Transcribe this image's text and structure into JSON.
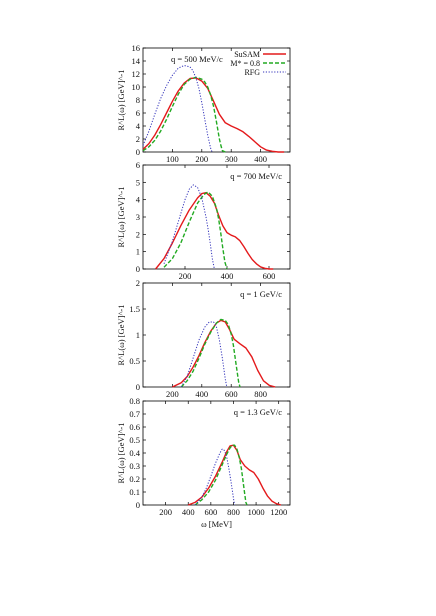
{
  "chart_data": [
    {
      "type": "line",
      "annotation": "q = 500 MeV/c",
      "ylabel": "R^L(ω) [GeV]^-1",
      "xlabel": "",
      "xlim": [
        0,
        500
      ],
      "ylim": [
        0,
        16
      ],
      "xticks": [
        100,
        200,
        300,
        400
      ],
      "yticks": [
        0,
        2,
        4,
        6,
        8,
        10,
        12,
        14,
        16
      ],
      "legend": {
        "placement": "top-right",
        "entries": [
          "SuSAM",
          "M* = 0.8",
          "RFG"
        ]
      },
      "series": [
        {
          "name": "SuSAM",
          "color": "#e41a1c",
          "style": "solid",
          "x": [
            0,
            20,
            40,
            60,
            80,
            100,
            120,
            140,
            160,
            180,
            200,
            220,
            240,
            260,
            280,
            300,
            320,
            340,
            360,
            380,
            400,
            420,
            440,
            460,
            480
          ],
          "y": [
            0.4,
            1.3,
            2.6,
            4.2,
            6.0,
            7.8,
            9.4,
            10.6,
            11.3,
            11.4,
            10.9,
            9.8,
            7.8,
            5.8,
            4.5,
            4.0,
            3.6,
            3.1,
            2.4,
            1.6,
            0.8,
            0.3,
            0.1,
            0.0,
            0.0
          ]
        },
        {
          "name": "M* = 0.8",
          "color": "#22aa22",
          "style": "dashed",
          "x": [
            0,
            20,
            40,
            60,
            80,
            100,
            120,
            140,
            160,
            180,
            200,
            210,
            220,
            230,
            240,
            250,
            260,
            265,
            270,
            280
          ],
          "y": [
            0.2,
            0.8,
            1.8,
            3.2,
            5.0,
            7.0,
            8.9,
            10.4,
            11.2,
            11.5,
            11.2,
            10.8,
            10.0,
            8.8,
            7.0,
            4.6,
            2.0,
            1.0,
            0.2,
            0.0
          ]
        },
        {
          "name": "RFG",
          "color": "#3333bb",
          "style": "dotted",
          "x": [
            0,
            20,
            40,
            60,
            80,
            100,
            120,
            140,
            160,
            170,
            180,
            190,
            200,
            210,
            220,
            230,
            235
          ],
          "y": [
            1.0,
            3.2,
            5.8,
            8.2,
            10.2,
            11.8,
            12.9,
            13.3,
            13.1,
            12.5,
            11.4,
            9.8,
            7.6,
            5.1,
            2.6,
            0.6,
            0.0
          ]
        }
      ]
    },
    {
      "type": "line",
      "annotation": "q = 700 MeV/c",
      "ylabel": "R^L(ω) [GeV]^-1",
      "xlabel": "",
      "xlim": [
        0,
        700
      ],
      "ylim": [
        0,
        6
      ],
      "xticks": [
        200,
        400,
        600
      ],
      "yticks": [
        0,
        1,
        2,
        3,
        4,
        5,
        6
      ],
      "series": [
        {
          "name": "SuSAM",
          "color": "#e41a1c",
          "style": "solid",
          "x": [
            60,
            100,
            140,
            180,
            220,
            260,
            280,
            300,
            320,
            340,
            360,
            380,
            400,
            420,
            440,
            460,
            480,
            500,
            520,
            540,
            560,
            580,
            600,
            620
          ],
          "y": [
            0.0,
            0.6,
            1.5,
            2.5,
            3.4,
            4.1,
            4.35,
            4.4,
            4.2,
            3.8,
            3.1,
            2.5,
            2.1,
            1.95,
            1.85,
            1.65,
            1.3,
            0.9,
            0.55,
            0.3,
            0.12,
            0.04,
            0.0,
            0.0
          ]
        },
        {
          "name": "M* = 0.8",
          "color": "#22aa22",
          "style": "dashed",
          "x": [
            100,
            140,
            180,
            220,
            260,
            290,
            310,
            330,
            350,
            360,
            370,
            380,
            390,
            400
          ],
          "y": [
            0.1,
            0.6,
            1.5,
            2.7,
            3.8,
            4.3,
            4.45,
            4.2,
            3.5,
            2.9,
            2.1,
            1.2,
            0.4,
            0.0
          ]
        },
        {
          "name": "RFG",
          "color": "#3333bb",
          "style": "dotted",
          "x": [
            100,
            140,
            180,
            200,
            220,
            240,
            260,
            280,
            300,
            310,
            320,
            330,
            340
          ],
          "y": [
            0.3,
            1.6,
            3.2,
            4.0,
            4.6,
            4.85,
            4.7,
            4.1,
            3.0,
            2.3,
            1.5,
            0.6,
            0.0
          ]
        }
      ]
    },
    {
      "type": "line",
      "annotation": "q = 1 GeV/c",
      "ylabel": "R^L(ω) [GeV]^-1",
      "xlabel": "",
      "xlim": [
        0,
        1000
      ],
      "ylim": [
        0,
        2
      ],
      "xticks": [
        200,
        400,
        600,
        800
      ],
      "yticks": [
        0,
        0.5,
        1,
        1.5,
        2
      ],
      "series": [
        {
          "name": "SuSAM",
          "color": "#e41a1c",
          "style": "solid",
          "x": [
            200,
            260,
            300,
            340,
            380,
            420,
            460,
            500,
            530,
            560,
            590,
            620,
            660,
            700,
            740,
            780,
            820,
            860,
            900
          ],
          "y": [
            0.0,
            0.08,
            0.2,
            0.38,
            0.6,
            0.85,
            1.07,
            1.23,
            1.28,
            1.25,
            1.1,
            0.92,
            0.83,
            0.75,
            0.58,
            0.32,
            0.12,
            0.03,
            0.0
          ]
        },
        {
          "name": "M* = 0.8",
          "color": "#22aa22",
          "style": "dashed",
          "x": [
            260,
            300,
            340,
            380,
            420,
            460,
            500,
            530,
            560,
            580,
            600,
            615,
            630,
            640,
            650,
            660
          ],
          "y": [
            0.0,
            0.12,
            0.3,
            0.55,
            0.82,
            1.05,
            1.23,
            1.3,
            1.28,
            1.2,
            1.02,
            0.8,
            0.5,
            0.3,
            0.1,
            0.0
          ]
        },
        {
          "name": "RFG",
          "color": "#3333bb",
          "style": "dotted",
          "x": [
            260,
            300,
            340,
            380,
            420,
            450,
            480,
            500,
            520,
            540,
            560,
            570
          ],
          "y": [
            0.0,
            0.2,
            0.55,
            0.9,
            1.15,
            1.25,
            1.25,
            1.15,
            0.9,
            0.55,
            0.15,
            0.0
          ]
        }
      ]
    },
    {
      "type": "line",
      "annotation": "q = 1.3 GeV/c",
      "ylabel": "R^L(ω) [GeV]^-1",
      "xlabel": "ω [MeV]",
      "xlim": [
        0,
        1300
      ],
      "ylim": [
        0,
        0.8
      ],
      "xticks": [
        200,
        400,
        600,
        800,
        1000,
        1200
      ],
      "yticks": [
        0,
        0.1,
        0.2,
        0.3,
        0.4,
        0.5,
        0.6,
        0.7,
        0.8
      ],
      "series": [
        {
          "name": "SuSAM",
          "color": "#e41a1c",
          "style": "solid",
          "x": [
            400,
            460,
            520,
            580,
            640,
            700,
            740,
            770,
            800,
            830,
            860,
            900,
            940,
            980,
            1020,
            1060,
            1100,
            1140,
            1180,
            1220
          ],
          "y": [
            0.0,
            0.02,
            0.06,
            0.13,
            0.22,
            0.33,
            0.41,
            0.455,
            0.46,
            0.42,
            0.35,
            0.3,
            0.27,
            0.25,
            0.2,
            0.13,
            0.07,
            0.03,
            0.01,
            0.0
          ]
        },
        {
          "name": "M* = 0.8",
          "color": "#22aa22",
          "style": "dashed",
          "x": [
            460,
            520,
            580,
            640,
            700,
            740,
            770,
            790,
            810,
            830,
            850,
            870,
            890,
            900,
            910,
            920
          ],
          "y": [
            0.0,
            0.04,
            0.1,
            0.19,
            0.31,
            0.39,
            0.44,
            0.46,
            0.46,
            0.43,
            0.37,
            0.28,
            0.15,
            0.08,
            0.02,
            0.0
          ]
        },
        {
          "name": "RFG",
          "color": "#3333bb",
          "style": "dotted",
          "x": [
            460,
            520,
            560,
            600,
            640,
            680,
            700,
            720,
            740,
            760,
            780,
            800,
            810
          ],
          "y": [
            0.0,
            0.06,
            0.13,
            0.22,
            0.32,
            0.4,
            0.43,
            0.42,
            0.37,
            0.28,
            0.17,
            0.05,
            0.0
          ]
        }
      ]
    }
  ]
}
